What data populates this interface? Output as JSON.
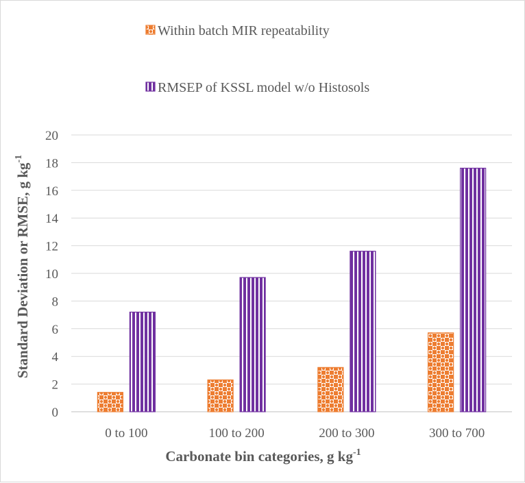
{
  "chart_data": {
    "type": "bar",
    "categories": [
      "0 to 100",
      "100 to 200",
      "200 to 300",
      "300 to 700"
    ],
    "series": [
      {
        "name": "Within batch MIR repeatability",
        "values": [
          1.4,
          2.3,
          3.2,
          5.7
        ],
        "color": "#ed7d31",
        "pattern": "checker"
      },
      {
        "name": "RMSEP of KSSL model w/o Histosols",
        "values": [
          7.2,
          9.7,
          11.6,
          17.6
        ],
        "color": "#7030a0",
        "pattern": "vertical-stripes"
      }
    ],
    "xlabel": {
      "text": "Carbonate bin categories, g kg",
      "sup": "-1"
    },
    "ylabel": {
      "text": "Standard Deviation or RMSE, g kg",
      "sup": "-1"
    },
    "ylim": [
      0,
      20
    ],
    "yticks": [
      0,
      2,
      4,
      6,
      8,
      10,
      12,
      14,
      16,
      18,
      20
    ],
    "grid": true,
    "legend_position": "top"
  }
}
